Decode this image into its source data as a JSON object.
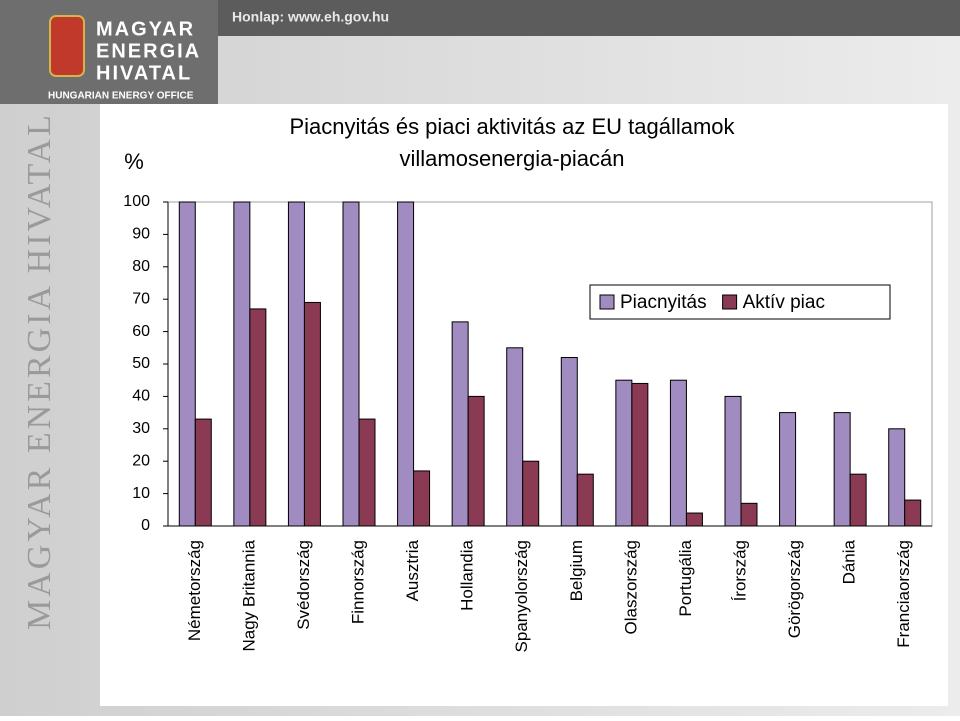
{
  "header": {
    "site": "Honlap: www.eh.gov.hu",
    "logo_lines": [
      "MAGYAR",
      "ENERGIA",
      "HIVATAL"
    ],
    "logo_subtitle": "HUNGARIAN ENERGY OFFICE",
    "side_text": "MAGYAR ENERGIA HIVATAL"
  },
  "chart_data": {
    "type": "bar",
    "title_lines": [
      "Piacnyitás és piaci aktivitás az EU tagállamok",
      "villamosenergia-piacán"
    ],
    "y_label": "%",
    "categories": [
      "Németország",
      "Nagy Britannia",
      "Svédország",
      "Finnország",
      "Ausztria",
      "Hollandia",
      "Spanyolország",
      "Belgium",
      "Olaszország",
      "Portugália",
      "Írország",
      "Görögország",
      "Dánia",
      "Franciaország"
    ],
    "series": [
      {
        "name": "Piacnyitás",
        "color": "#a08cc0",
        "values": [
          100,
          100,
          100,
          100,
          100,
          63,
          55,
          52,
          45,
          45,
          40,
          35,
          35,
          30
        ]
      },
      {
        "name": "Aktív piac",
        "color": "#8a3a52",
        "values": [
          33,
          67,
          69,
          33,
          17,
          40,
          20,
          16,
          44,
          4,
          7,
          0,
          16,
          8
        ]
      }
    ],
    "ylim": [
      0,
      100
    ],
    "yticks": [
      0,
      10,
      20,
      30,
      40,
      50,
      60,
      70,
      80,
      90,
      100
    ],
    "legend": "top-right"
  }
}
